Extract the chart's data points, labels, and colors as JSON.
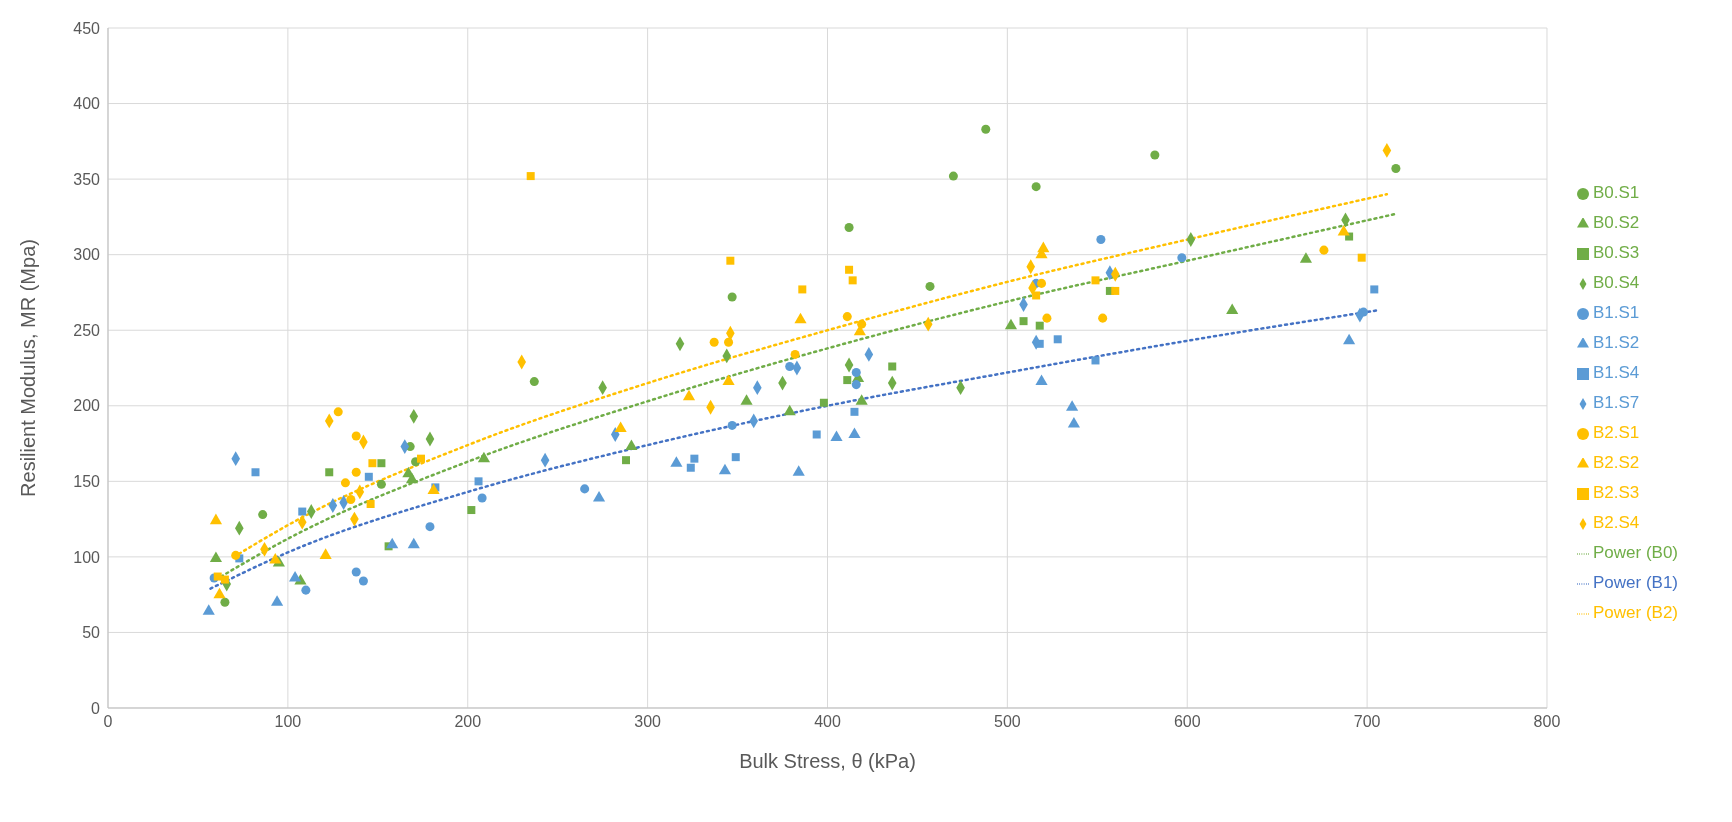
{
  "chart_data": {
    "type": "scatter",
    "xlabel": "Bulk Stress, θ (kPa)",
    "ylabel": "Resilient Modulus, MR (Mpa)",
    "xlim": [
      0,
      800
    ],
    "xticks": [
      0,
      100,
      200,
      300,
      400,
      500,
      600,
      700,
      800
    ],
    "ylim": [
      0,
      450
    ],
    "yticks": [
      0,
      50,
      100,
      150,
      200,
      250,
      300,
      350,
      400,
      450
    ],
    "grid": true,
    "legend": "right",
    "series": [
      {
        "name": "B0.S1",
        "color": "#70ad47",
        "marker": "circle",
        "x": [
          65,
          86,
          152,
          168,
          171,
          237,
          347,
          412,
          457,
          470,
          488,
          516,
          582,
          716
        ],
        "values": [
          70,
          128,
          148,
          173,
          163,
          216,
          272,
          318,
          279,
          352,
          383,
          345,
          366,
          357
        ]
      },
      {
        "name": "B0.S2",
        "color": "#70ad47",
        "marker": "triangle",
        "x": [
          60,
          95,
          107,
          167,
          169,
          209,
          291,
          355,
          379,
          417,
          419,
          502,
          625,
          666
        ],
        "values": [
          99,
          96,
          84,
          155,
          151,
          165,
          173,
          203,
          196,
          218,
          203,
          253,
          263,
          297
        ]
      },
      {
        "name": "B0.S3",
        "color": "#70ad47",
        "marker": "square",
        "x": [
          123,
          152,
          156,
          202,
          288,
          398,
          411,
          436,
          509,
          518,
          557,
          690
        ],
        "values": [
          156,
          162,
          107,
          131,
          164,
          202,
          217,
          226,
          256,
          253,
          276,
          312
        ]
      },
      {
        "name": "B0.S4",
        "color": "#70ad47",
        "marker": "diamond",
        "x": [
          66,
          73,
          113,
          170,
          179,
          275,
          318,
          344,
          375,
          412,
          436,
          474,
          602,
          688
        ],
        "values": [
          82,
          119,
          130,
          193,
          178,
          212,
          241,
          233,
          215,
          227,
          215,
          212,
          310,
          323
        ]
      },
      {
        "name": "B1.S1",
        "color": "#5b9bd5",
        "marker": "circle",
        "x": [
          59,
          110,
          138,
          142,
          179,
          208,
          265,
          347,
          379,
          416,
          416,
          516,
          552,
          597,
          698
        ],
        "values": [
          86,
          78,
          90,
          84,
          120,
          139,
          145,
          187,
          226,
          222,
          214,
          281,
          310,
          298,
          262
        ]
      },
      {
        "name": "B1.S2",
        "color": "#5b9bd5",
        "marker": "triangle",
        "x": [
          56,
          94,
          104,
          158,
          170,
          273,
          316,
          343,
          384,
          405,
          415,
          519,
          536,
          537,
          690
        ],
        "values": [
          64,
          70,
          86,
          108,
          108,
          139,
          162,
          157,
          156,
          179,
          181,
          216,
          199,
          188,
          243
        ]
      },
      {
        "name": "B1.S4",
        "color": "#5b9bd5",
        "marker": "square",
        "x": [
          73,
          82,
          108,
          145,
          182,
          206,
          324,
          326,
          349,
          394,
          415,
          518,
          528,
          549,
          704
        ],
        "values": [
          99,
          156,
          130,
          153,
          146,
          150,
          159,
          165,
          166,
          181,
          196,
          241,
          244,
          230,
          277
        ]
      },
      {
        "name": "B1.S7",
        "color": "#5b9bd5",
        "marker": "diamond",
        "x": [
          71,
          125,
          131,
          165,
          243,
          282,
          359,
          361,
          383,
          423,
          509,
          516,
          557,
          696
        ],
        "values": [
          165,
          134,
          136,
          173,
          164,
          181,
          190,
          212,
          225,
          234,
          267,
          242,
          288,
          260
        ]
      },
      {
        "name": "B2.S1",
        "color": "#ffc000",
        "marker": "circle",
        "x": [
          71,
          128,
          132,
          135,
          138,
          138,
          337,
          345,
          382,
          411,
          419,
          519,
          522,
          553,
          676
        ],
        "values": [
          101,
          196,
          149,
          138,
          180,
          156,
          242,
          242,
          234,
          259,
          254,
          281,
          258,
          258,
          303
        ]
      },
      {
        "name": "B2.S2",
        "color": "#ffc000",
        "marker": "triangle",
        "x": [
          60,
          62,
          93,
          121,
          181,
          285,
          323,
          345,
          385,
          418,
          519,
          520,
          687
        ],
        "values": [
          124,
          75,
          98,
          101,
          144,
          185,
          206,
          216,
          257,
          249,
          300,
          304,
          315
        ]
      },
      {
        "name": "B2.S3",
        "color": "#ffc000",
        "marker": "square",
        "x": [
          61,
          65,
          146,
          147,
          174,
          235,
          346,
          386,
          412,
          414,
          516,
          549,
          560,
          697
        ],
        "values": [
          87,
          85,
          135,
          162,
          165,
          352,
          296,
          277,
          290,
          283,
          273,
          283,
          276,
          298
        ]
      },
      {
        "name": "B2.S4",
        "color": "#ffc000",
        "marker": "diamond",
        "x": [
          87,
          108,
          123,
          137,
          140,
          142,
          230,
          335,
          346,
          456,
          513,
          514,
          560,
          711
        ],
        "values": [
          105,
          123,
          190,
          125,
          143,
          176,
          229,
          199,
          248,
          254,
          292,
          278,
          287,
          369
        ]
      },
      {
        "name": "Power (B0)",
        "type": "line",
        "color": "#70ad47",
        "marker": "none",
        "line_style": "dotted",
        "x": [
          60,
          100,
          200,
          300,
          400,
          500,
          600,
          716
        ],
        "values": [
          85,
          112,
          163,
          203,
          238,
          269,
          296,
          327
        ]
      },
      {
        "name": "Power (B1)",
        "type": "line",
        "color": "#4472c4",
        "marker": "none",
        "line_style": "dotted",
        "x": [
          57,
          100,
          200,
          300,
          400,
          500,
          600,
          705
        ],
        "values": [
          79,
          103,
          143,
          174,
          200,
          222,
          243,
          263
        ]
      },
      {
        "name": "Power (B2)",
        "type": "line",
        "color": "#ffc000",
        "marker": "none",
        "line_style": "dotted",
        "x": [
          70,
          100,
          200,
          300,
          400,
          500,
          600,
          711
        ],
        "values": [
          100,
          121,
          174,
          215,
          250,
          282,
          310,
          340
        ]
      }
    ]
  }
}
